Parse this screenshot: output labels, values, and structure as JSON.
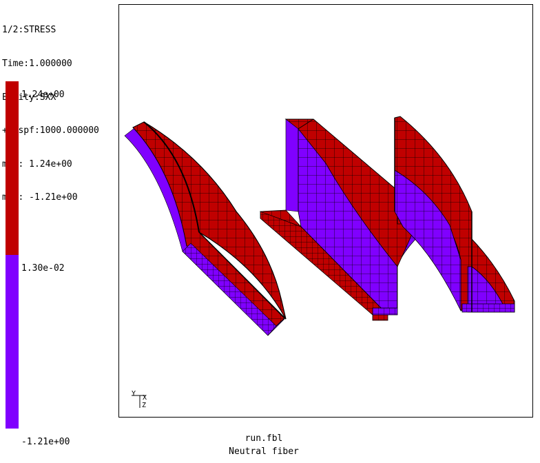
{
  "info": {
    "title": "1/2:STRESS",
    "time": "Time:1.000000",
    "entity": "Entity:SXX",
    "dispf": "+Dispf:1000.000000",
    "max": "max: 1.24e+00",
    "min": "min: -1.21e+00"
  },
  "legend": {
    "top_label": "1.24e+00",
    "mid_label": "1.30e-02",
    "bottom_label": "-1.21e+00",
    "color_high": "#c00000",
    "color_low": "#8000ff"
  },
  "axes": {
    "y": "Y",
    "x": "X",
    "z": "Z"
  },
  "footer": {
    "file": "run.fbl",
    "caption": "Neutral fiber"
  },
  "colors": {
    "red": "#c00000",
    "purple": "#8000ff",
    "mesh": "#000000"
  }
}
